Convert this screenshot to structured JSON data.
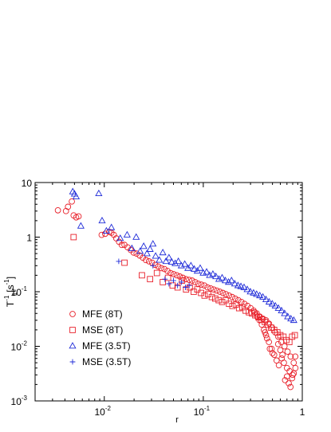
{
  "chart_data": {
    "type": "scatter",
    "title": "",
    "xlabel": "r",
    "ylabel_parts": [
      "T",
      "-1",
      "1",
      "[s",
      "-1",
      "]"
    ],
    "xscale": "log",
    "yscale": "log",
    "xlim": [
      0.002,
      1
    ],
    "ylim": [
      0.001,
      10
    ],
    "x_ticks": [
      {
        "value": 0.01,
        "base": "10",
        "exp": "-2"
      },
      {
        "value": 0.1,
        "base": "10",
        "exp": "-1"
      },
      {
        "value": 1,
        "base": "1",
        "exp": ""
      }
    ],
    "y_ticks": [
      {
        "value": 0.001,
        "base": "10",
        "exp": "-3"
      },
      {
        "value": 0.01,
        "base": "10",
        "exp": "-2"
      },
      {
        "value": 0.1,
        "base": "10",
        "exp": "-1"
      },
      {
        "value": 1,
        "base": "1",
        "exp": ""
      },
      {
        "value": 10,
        "base": "10",
        "exp": ""
      }
    ],
    "grid": false,
    "legend_position": "bottom-left",
    "series": [
      {
        "name": "MFE (8T)",
        "marker": "circle",
        "color": "#e8202a",
        "x": [
          0.0034,
          0.0041,
          0.0043,
          0.0047,
          0.0049,
          0.0052,
          0.0055,
          0.0094,
          0.0102,
          0.0112,
          0.0118,
          0.0125,
          0.0132,
          0.0141,
          0.015,
          0.016,
          0.0172,
          0.0185,
          0.0198,
          0.0212,
          0.0228,
          0.0245,
          0.0263,
          0.0283,
          0.0304,
          0.0327,
          0.0351,
          0.0377,
          0.0405,
          0.0435,
          0.0467,
          0.0502,
          0.0539,
          0.0579,
          0.0622,
          0.0668,
          0.0718,
          0.0771,
          0.0828,
          0.089,
          0.0956,
          0.1027,
          0.1103,
          0.1185,
          0.1273,
          0.1367,
          0.1469,
          0.1578,
          0.1695,
          0.1821,
          0.1956,
          0.2101,
          0.2257,
          0.2425,
          0.2605,
          0.2798,
          0.3006,
          0.3229,
          0.3469,
          0.3726,
          0.4003,
          0.43,
          0.4619,
          0.4962,
          0.533,
          0.5725,
          0.6151,
          0.6607,
          0.7098,
          0.7624,
          0.819,
          0.852,
          0.8,
          0.745,
          0.7,
          0.652,
          0.62,
          0.58,
          0.55,
          0.52,
          0.49,
          0.46,
          0.43,
          0.41,
          0.39,
          0.37,
          0.35,
          0.33,
          0.67,
          0.7,
          0.73,
          0.76,
          0.79,
          0.82,
          0.85,
          0.63,
          0.6,
          0.57,
          0.5,
          0.47,
          0.44,
          0.42
        ],
        "y": [
          3.1,
          3.0,
          3.6,
          4.5,
          2.5,
          2.3,
          2.4,
          1.1,
          1.15,
          1.25,
          1.2,
          1.1,
          0.95,
          0.82,
          0.72,
          0.72,
          0.65,
          0.58,
          0.52,
          0.5,
          0.46,
          0.42,
          0.38,
          0.36,
          0.34,
          0.31,
          0.29,
          0.27,
          0.26,
          0.24,
          0.22,
          0.21,
          0.2,
          0.19,
          0.18,
          0.17,
          0.165,
          0.16,
          0.15,
          0.14,
          0.135,
          0.13,
          0.12,
          0.115,
          0.11,
          0.105,
          0.1,
          0.095,
          0.09,
          0.085,
          0.08,
          0.075,
          0.07,
          0.065,
          0.06,
          0.055,
          0.05,
          0.045,
          0.04,
          0.035,
          0.032,
          0.03,
          0.026,
          0.022,
          0.018,
          0.015,
          0.012,
          0.01,
          0.008,
          0.0065,
          0.005,
          0.004,
          0.003,
          0.0035,
          0.004,
          0.005,
          0.006,
          0.0045,
          0.0055,
          0.007,
          0.009,
          0.012,
          0.016,
          0.02,
          0.025,
          0.03,
          0.035,
          0.042,
          0.0024,
          0.0028,
          0.0021,
          0.0018,
          0.0026,
          0.0032,
          0.0065,
          0.007,
          0.0085,
          0.011,
          0.0075,
          0.009,
          0.014,
          0.018
        ]
      },
      {
        "name": "MSE (8T)",
        "marker": "square",
        "color": "#e8202a",
        "x": [
          0.0049,
          0.016,
          0.024,
          0.029,
          0.034,
          0.039,
          0.044,
          0.049,
          0.055,
          0.061,
          0.067,
          0.073,
          0.08,
          0.087,
          0.095,
          0.103,
          0.112,
          0.122,
          0.132,
          0.143,
          0.155,
          0.168,
          0.182,
          0.197,
          0.213,
          0.23,
          0.248,
          0.268,
          0.289,
          0.311,
          0.335,
          0.361,
          0.388,
          0.418,
          0.45,
          0.484,
          0.52,
          0.56,
          0.6,
          0.645,
          0.69,
          0.74,
          0.79,
          0.84
        ],
        "y": [
          1.0,
          0.34,
          0.2,
          0.17,
          0.22,
          0.15,
          0.18,
          0.13,
          0.12,
          0.16,
          0.11,
          0.12,
          0.1,
          0.11,
          0.095,
          0.085,
          0.09,
          0.08,
          0.075,
          0.07,
          0.065,
          0.07,
          0.06,
          0.055,
          0.058,
          0.05,
          0.052,
          0.045,
          0.042,
          0.04,
          0.037,
          0.034,
          0.031,
          0.028,
          0.025,
          0.022,
          0.02,
          0.018,
          0.016,
          0.015,
          0.013,
          0.012,
          0.015,
          0.016
        ]
      },
      {
        "name": "MFE (3.5T)",
        "marker": "triangle",
        "color": "#1f2bd8",
        "x": [
          0.0048,
          0.005,
          0.0052,
          0.0058,
          0.0088,
          0.0095,
          0.0105,
          0.0118,
          0.0145,
          0.017,
          0.019,
          0.021,
          0.023,
          0.025,
          0.027,
          0.029,
          0.031,
          0.033,
          0.036,
          0.039,
          0.042,
          0.045,
          0.048,
          0.052,
          0.056,
          0.06,
          0.065,
          0.07,
          0.075,
          0.081,
          0.087,
          0.093,
          0.1,
          0.108,
          0.116,
          0.125,
          0.134,
          0.144,
          0.155,
          0.167,
          0.18,
          0.193,
          0.208,
          0.224,
          0.24,
          0.258,
          0.278,
          0.299,
          0.322,
          0.346,
          0.372,
          0.4,
          0.43,
          0.462,
          0.497,
          0.534,
          0.574,
          0.617,
          0.663,
          0.713,
          0.767,
          0.82
        ],
        "y": [
          6.8,
          6.2,
          5.5,
          1.6,
          6.3,
          2.0,
          1.3,
          1.5,
          0.95,
          1.1,
          0.62,
          1.0,
          0.55,
          0.68,
          0.5,
          0.6,
          0.75,
          0.45,
          0.38,
          0.52,
          0.36,
          0.42,
          0.35,
          0.33,
          0.36,
          0.3,
          0.32,
          0.27,
          0.3,
          0.26,
          0.24,
          0.27,
          0.22,
          0.23,
          0.2,
          0.21,
          0.19,
          0.17,
          0.18,
          0.16,
          0.15,
          0.16,
          0.14,
          0.13,
          0.125,
          0.12,
          0.11,
          0.1,
          0.095,
          0.09,
          0.085,
          0.08,
          0.072,
          0.065,
          0.06,
          0.055,
          0.05,
          0.045,
          0.04,
          0.035,
          0.032,
          0.03
        ]
      },
      {
        "name": "MSE (3.5T)",
        "marker": "plus",
        "color": "#1f2bd8",
        "x": [
          0.014,
          0.031,
          0.041,
          0.045,
          0.05,
          0.055,
          0.06,
          0.066,
          0.072
        ],
        "y": [
          0.36,
          0.3,
          0.17,
          0.14,
          0.16,
          0.13,
          0.15,
          0.12,
          0.13
        ]
      }
    ]
  }
}
